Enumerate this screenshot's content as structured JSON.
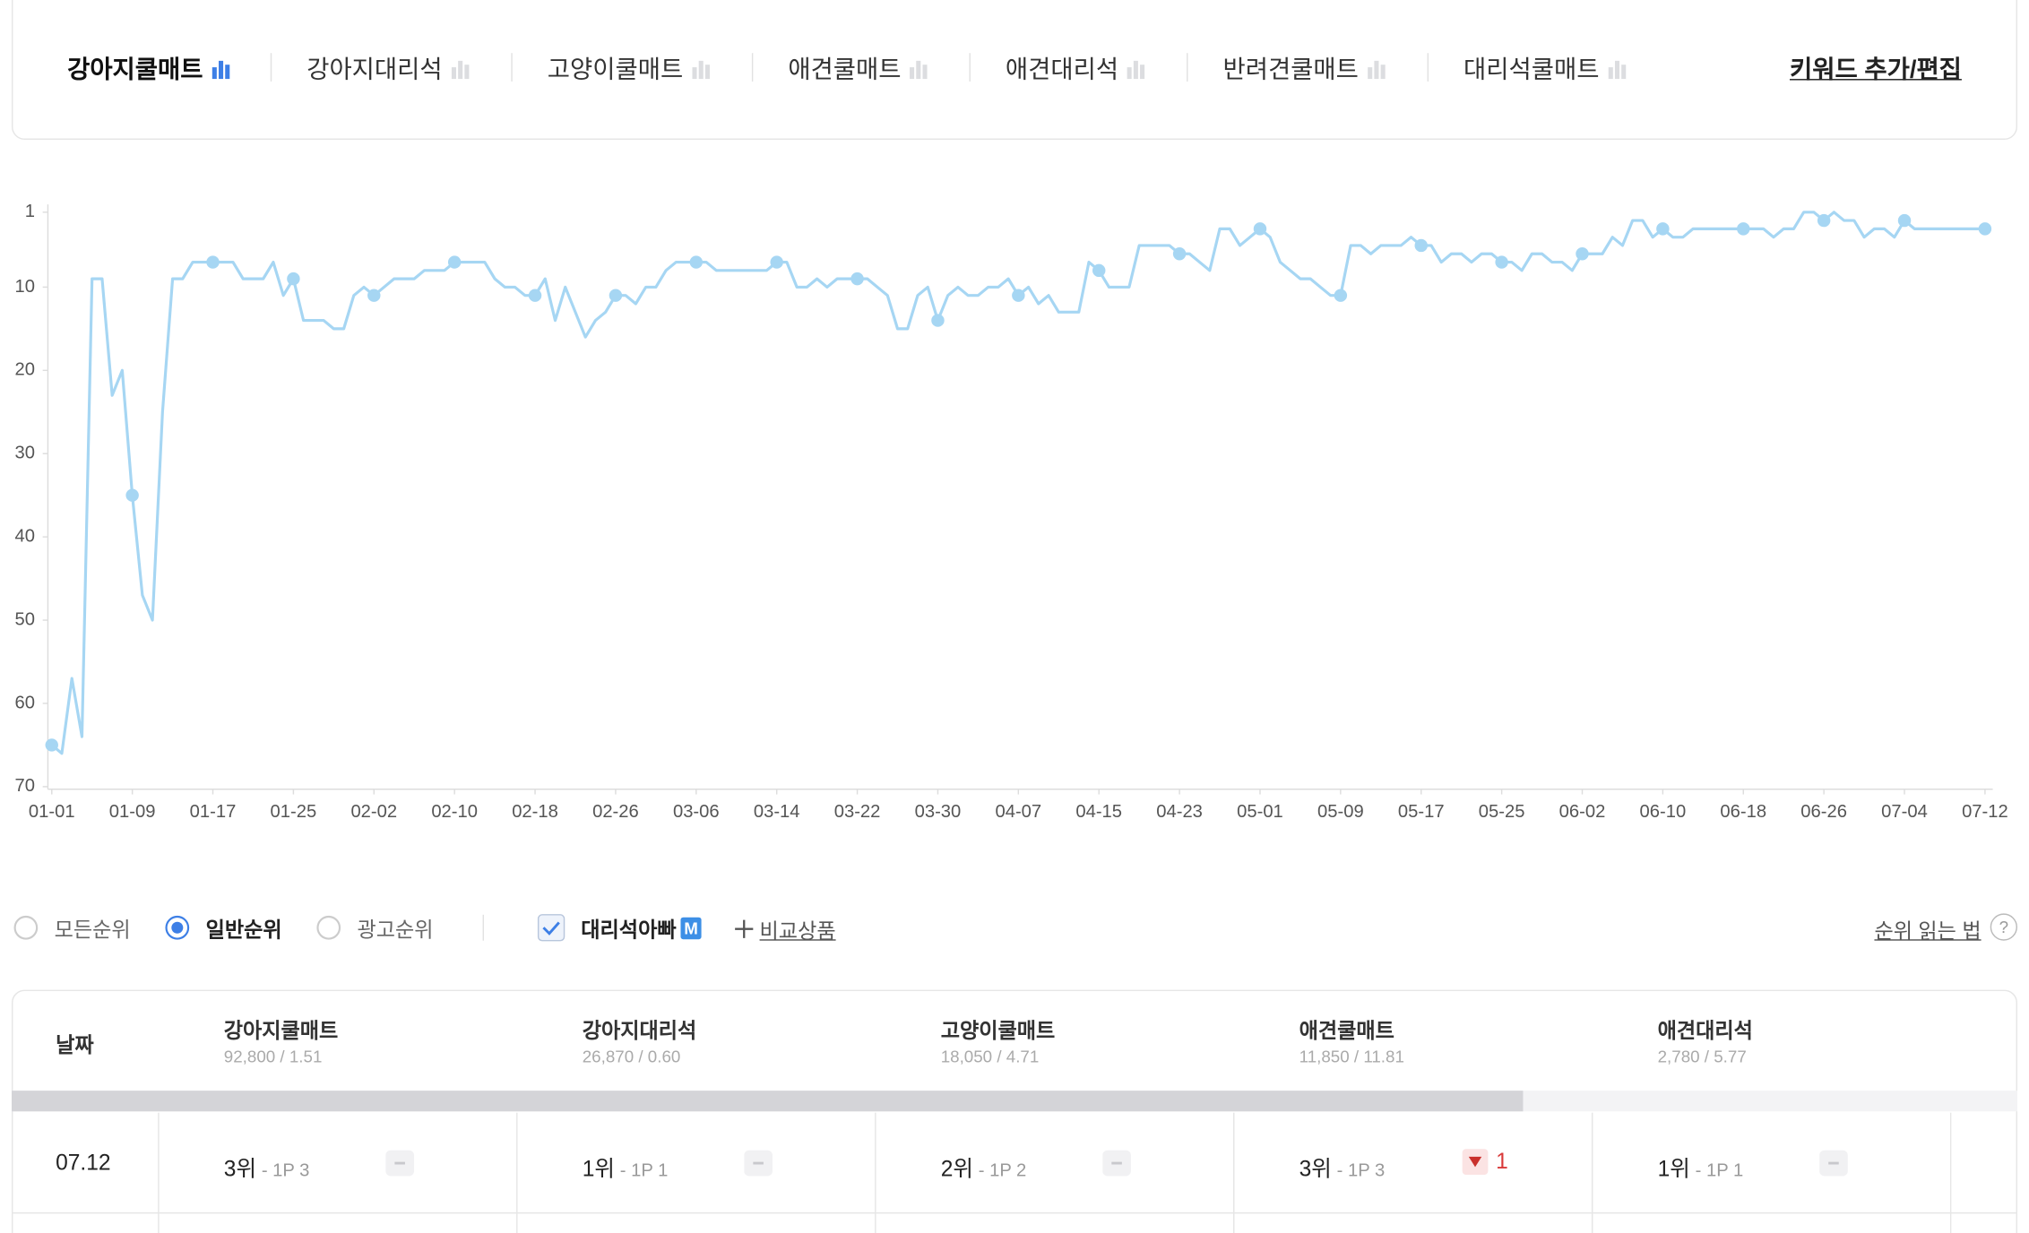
{
  "tabs": [
    {
      "label": "강아지쿨매트",
      "active": true
    },
    {
      "label": "강아지대리석",
      "active": false
    },
    {
      "label": "고양이쿨매트",
      "active": false
    },
    {
      "label": "애견쿨매트",
      "active": false
    },
    {
      "label": "애견대리석",
      "active": false
    },
    {
      "label": "반려견쿨매트",
      "active": false
    },
    {
      "label": "대리석쿨매트",
      "active": false
    }
  ],
  "edit_link": "키워드 추가/편집",
  "chart_data": {
    "type": "line",
    "color": "#a6d6f3",
    "y_reversed": true,
    "ylim": [
      1,
      70
    ],
    "yticks": [
      1,
      10,
      20,
      30,
      40,
      50,
      60,
      70
    ],
    "markers_on_labeled": true,
    "categories": [
      "01-01",
      null,
      null,
      null,
      null,
      null,
      null,
      null,
      "01-09",
      null,
      null,
      null,
      null,
      null,
      null,
      null,
      "01-17",
      null,
      null,
      null,
      null,
      null,
      null,
      null,
      "01-25",
      null,
      null,
      null,
      null,
      null,
      null,
      null,
      "02-02",
      null,
      null,
      null,
      null,
      null,
      null,
      null,
      "02-10",
      null,
      null,
      null,
      null,
      null,
      null,
      null,
      "02-18",
      null,
      null,
      null,
      null,
      null,
      null,
      null,
      "02-26",
      null,
      null,
      null,
      null,
      null,
      null,
      null,
      "03-06",
      null,
      null,
      null,
      null,
      null,
      null,
      null,
      "03-14",
      null,
      null,
      null,
      null,
      null,
      null,
      null,
      "03-22",
      null,
      null,
      null,
      null,
      null,
      null,
      null,
      "03-30",
      null,
      null,
      null,
      null,
      null,
      null,
      null,
      "04-07",
      null,
      null,
      null,
      null,
      null,
      null,
      null,
      "04-15",
      null,
      null,
      null,
      null,
      null,
      null,
      null,
      "04-23",
      null,
      null,
      null,
      null,
      null,
      null,
      null,
      "05-01",
      null,
      null,
      null,
      null,
      null,
      null,
      null,
      "05-09",
      null,
      null,
      null,
      null,
      null,
      null,
      null,
      "05-17",
      null,
      null,
      null,
      null,
      null,
      null,
      null,
      "05-25",
      null,
      null,
      null,
      null,
      null,
      null,
      null,
      "06-02",
      null,
      null,
      null,
      null,
      null,
      null,
      null,
      "06-10",
      null,
      null,
      null,
      null,
      null,
      null,
      null,
      "06-18",
      null,
      null,
      null,
      null,
      null,
      null,
      null,
      "06-26",
      null,
      null,
      null,
      null,
      null,
      null,
      null,
      "07-04",
      null,
      null,
      null,
      null,
      null,
      null,
      null,
      "07-12"
    ],
    "values": [
      65,
      66,
      57,
      64,
      9,
      9,
      23,
      20,
      35,
      47,
      50,
      25,
      9,
      9,
      7,
      7,
      7,
      7,
      7,
      9,
      9,
      9,
      7,
      11,
      9,
      14,
      14,
      14,
      15,
      15,
      11,
      10,
      11,
      10,
      9,
      9,
      9,
      8,
      8,
      8,
      7,
      7,
      7,
      7,
      9,
      10,
      10,
      11,
      11,
      9,
      14,
      10,
      13,
      16,
      14,
      13,
      11,
      11,
      12,
      10,
      10,
      8,
      7,
      7,
      7,
      7,
      8,
      8,
      8,
      8,
      8,
      8,
      7,
      7,
      10,
      10,
      9,
      10,
      9,
      9,
      9,
      9,
      10,
      11,
      15,
      15,
      11,
      10,
      14,
      11,
      10,
      11,
      11,
      10,
      10,
      9,
      11,
      10,
      12,
      11,
      13,
      13,
      13,
      7,
      8,
      10,
      10,
      10,
      5,
      5,
      5,
      5,
      6,
      6,
      7,
      8,
      3,
      3,
      5,
      4,
      3,
      4,
      7,
      8,
      9,
      9,
      10,
      11,
      11,
      5,
      5,
      6,
      5,
      5,
      5,
      4,
      5,
      5,
      7,
      6,
      6,
      7,
      6,
      6,
      7,
      7,
      8,
      6,
      6,
      7,
      7,
      8,
      6,
      6,
      6,
      4,
      5,
      2,
      2,
      4,
      3,
      4,
      4,
      3,
      3,
      3,
      3,
      3,
      3,
      3,
      3,
      4,
      3,
      3,
      1,
      1,
      2,
      1,
      2,
      2,
      4,
      3,
      3,
      4,
      2,
      3,
      3,
      3,
      3,
      3,
      3,
      3,
      3
    ]
  },
  "controls": {
    "rank_options": [
      {
        "label": "모든순위",
        "selected": false
      },
      {
        "label": "일반순위",
        "selected": true
      },
      {
        "label": "광고순위",
        "selected": false
      }
    ],
    "product": {
      "label": "대리석아빠",
      "badge": "M",
      "checked": true
    },
    "compare": "비교상품",
    "help": "순위 읽는 법",
    "help_icon": "?"
  },
  "table": {
    "date_header": "날짜",
    "columns": [
      {
        "name": "강아지쿨매트",
        "stats": "92,800 / 1.51"
      },
      {
        "name": "강아지대리석",
        "stats": "26,870 / 0.60"
      },
      {
        "name": "고양이쿨매트",
        "stats": "18,050 / 4.71"
      },
      {
        "name": "애견쿨매트",
        "stats": "11,850 / 11.81"
      },
      {
        "name": "애견대리석",
        "stats": "2,780 / 5.77"
      }
    ],
    "rows": [
      {
        "date": "07.12",
        "cells": [
          {
            "rank": "3위",
            "page": "- 1P 3"
          },
          {
            "rank": "1위",
            "page": "- 1P 1"
          },
          {
            "rank": "2위",
            "page": "- 1P 2"
          },
          {
            "rank": "3위",
            "page": "- 1P 3",
            "change": "1",
            "change_dir": "down"
          },
          {
            "rank": "1위",
            "page": "- 1P 1"
          }
        ]
      }
    ]
  }
}
